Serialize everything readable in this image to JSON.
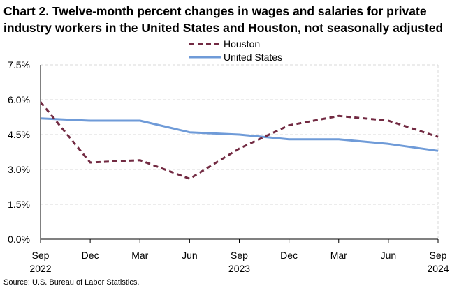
{
  "title_line1": "Chart 2. Twelve-month percent changes in wages and salaries for private",
  "title_line2": "industry workers in the United States and Houston, not seasonally adjusted",
  "source": "Source: U.S. Bureau of Labor Statistics.",
  "colors": {
    "houston": "#722a42",
    "united_states": "#6f9bd8",
    "grid": "#d9d9d9",
    "axis": "#000000"
  },
  "chart_data": {
    "type": "line",
    "title": "Twelve-month percent changes in wages and salaries for private industry workers in the United States and Houston, not seasonally adjusted",
    "xlabel": "",
    "ylabel": "",
    "categories": [
      "Sep",
      "Dec",
      "Mar",
      "Jun",
      "Sep",
      "Dec",
      "Mar",
      "Jun",
      "Sep"
    ],
    "year_labels": [
      {
        "index": 0,
        "label": "2022"
      },
      {
        "index": 4,
        "label": "2023"
      },
      {
        "index": 8,
        "label": "2024"
      }
    ],
    "y_ticks": [
      0,
      1.5,
      3.0,
      4.5,
      6.0,
      7.5
    ],
    "y_tick_labels": [
      "0.0%",
      "1.5%",
      "3.0%",
      "4.5%",
      "6.0%",
      "7.5%"
    ],
    "ylim": [
      0,
      7.5
    ],
    "grid": true,
    "legend_position": "top-center",
    "series": [
      {
        "name": "Houston",
        "style": "dashed",
        "values": [
          5.9,
          3.3,
          3.4,
          2.6,
          3.9,
          4.9,
          5.3,
          5.1,
          4.4
        ]
      },
      {
        "name": "United States",
        "style": "solid",
        "values": [
          5.2,
          5.1,
          5.1,
          4.6,
          4.5,
          4.3,
          4.3,
          4.1,
          3.8
        ]
      }
    ]
  }
}
